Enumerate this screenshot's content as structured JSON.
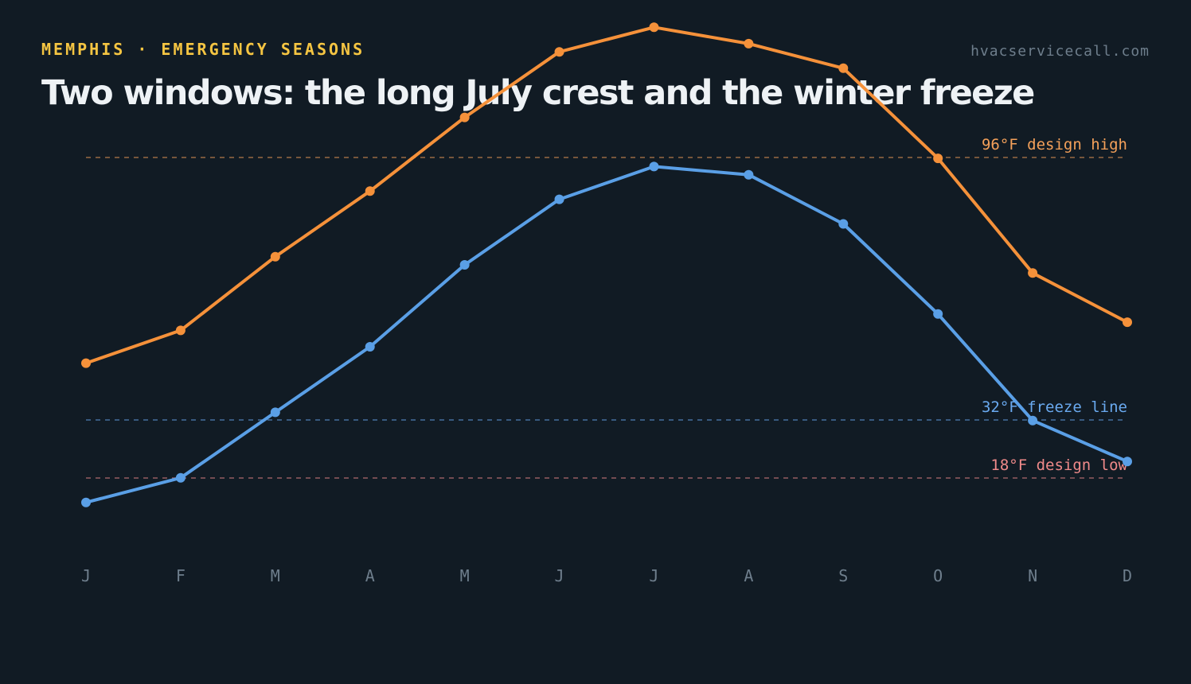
{
  "header": {
    "eyebrow": "MEMPHIS · EMERGENCY SEASONS",
    "site": "hvacservicecall.com",
    "title": "Two windows: the long July crest and the winter freeze"
  },
  "colors": {
    "background": "#111b24",
    "high_series": "#f5913a",
    "low_series": "#5a9fe6",
    "design_high": "#f5a15a",
    "freeze_line": "#6aaaf0",
    "design_low": "#f08a8a"
  },
  "chart_data": {
    "type": "line",
    "categories": [
      "J",
      "F",
      "M",
      "A",
      "M",
      "J",
      "J",
      "A",
      "S",
      "O",
      "N",
      "D"
    ],
    "series": [
      {
        "values": [
          50,
          54,
          63,
          71,
          80,
          88,
          91,
          89,
          86,
          75,
          61,
          55
        ]
      },
      {
        "values": [
          33,
          36,
          44,
          52,
          62,
          70,
          74,
          73,
          67,
          56,
          43,
          38
        ]
      }
    ],
    "reference_lines": [
      {
        "value": 96,
        "label": "96°F design high"
      },
      {
        "value": 32,
        "label": "32°F freeze line"
      },
      {
        "value": 18,
        "label": "18°F design low"
      }
    ],
    "ylim": [
      0,
      100
    ],
    "grid": false,
    "legend": "none",
    "title": "",
    "xlabel": "",
    "ylabel": ""
  }
}
